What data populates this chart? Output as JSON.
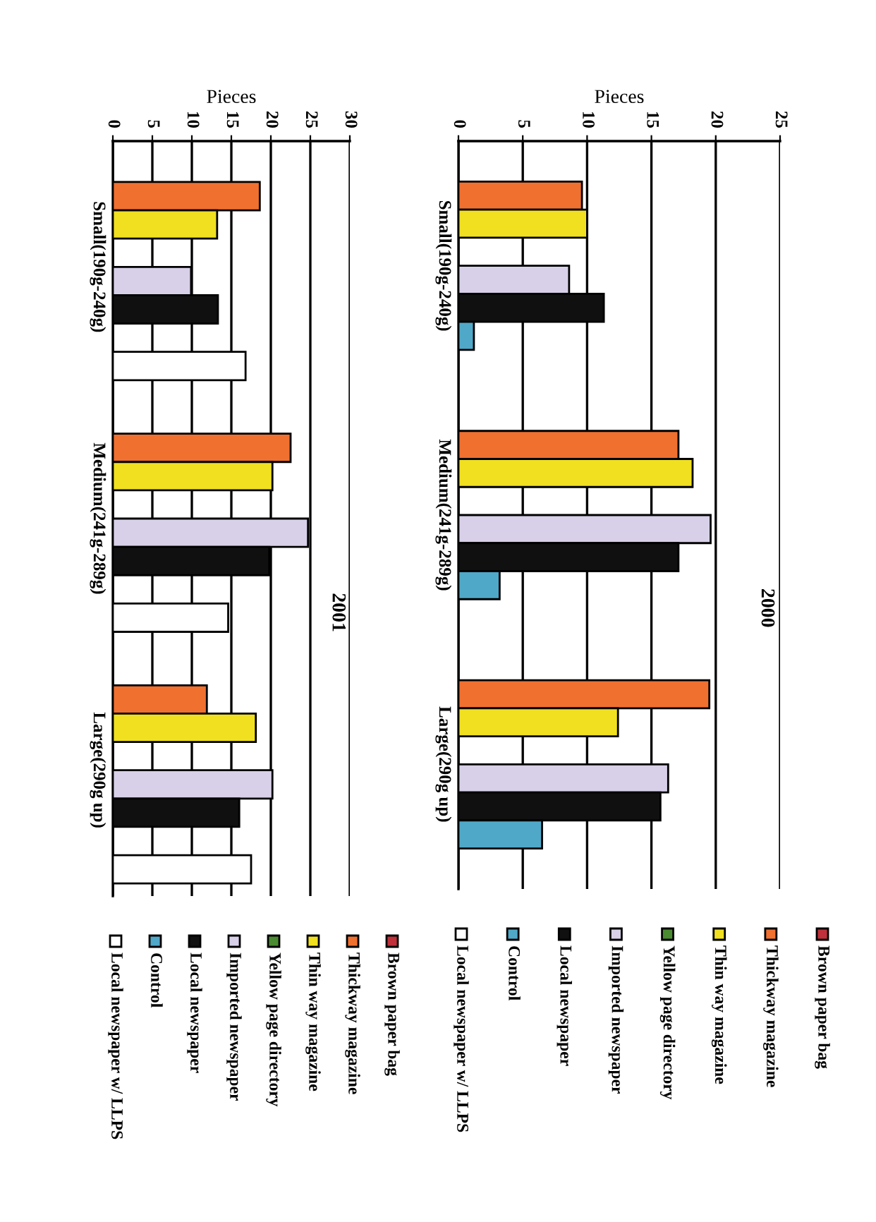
{
  "chart_data": [
    {
      "type": "bar",
      "orientation": "horizontal",
      "title": "2000",
      "xlabel": "Pieces",
      "categories": [
        "Small(190g-240g)",
        "Medium(241g-289g)",
        "Large(290g up)"
      ],
      "xlim": [
        0,
        25
      ],
      "xticks": [
        0,
        5,
        10,
        15,
        20,
        25
      ],
      "grid": "x",
      "legend": "bottom",
      "series": [
        {
          "name": "Brown paper bag",
          "color": "#c0303a",
          "values": [
            null,
            null,
            null
          ]
        },
        {
          "name": "Thickway magazine",
          "color": "#f07030",
          "values": [
            9.6,
            17.1,
            19.5
          ]
        },
        {
          "name": "Thin way magazine",
          "color": "#f0e020",
          "values": [
            10,
            18.2,
            12.4
          ]
        },
        {
          "name": "Yellow page directory",
          "color": "#4a8a30",
          "values": [
            null,
            null,
            null
          ]
        },
        {
          "name": "Imported newspaper",
          "color": "#d8d0e8",
          "values": [
            8.6,
            19.6,
            16.3
          ]
        },
        {
          "name": "Local newspaper",
          "color": "#101010",
          "values": [
            11.3,
            17.1,
            15.7
          ]
        },
        {
          "name": "Control",
          "color": "#50a8c8",
          "values": [
            1.2,
            3.2,
            6.5
          ]
        },
        {
          "name": "Local newspaper w/ LLPS",
          "color": "#ffffff",
          "values": [
            null,
            null,
            null
          ]
        }
      ]
    },
    {
      "type": "bar",
      "orientation": "horizontal",
      "title": "2001",
      "xlabel": "Pieces",
      "categories": [
        "Small(190g-240g)",
        "Medium(241g-289g)",
        "Large(290g up)"
      ],
      "xlim": [
        0,
        30
      ],
      "xticks": [
        0,
        5,
        10,
        15,
        20,
        25,
        30
      ],
      "grid": "x",
      "legend": "bottom",
      "series": [
        {
          "name": "Brown paper bag",
          "color": "#c0303a",
          "values": [
            null,
            null,
            null
          ]
        },
        {
          "name": "Thickway magazine",
          "color": "#f07030",
          "values": [
            18.6,
            22.5,
            11.9
          ]
        },
        {
          "name": "Thin way magazine",
          "color": "#f0e020",
          "values": [
            13.2,
            20.2,
            18.1
          ]
        },
        {
          "name": "Yellow page directory",
          "color": "#4a8a30",
          "values": [
            null,
            null,
            null
          ]
        },
        {
          "name": "Imported newspaper",
          "color": "#d8d0e8",
          "values": [
            9.9,
            24.7,
            20.2
          ]
        },
        {
          "name": "Local newspaper",
          "color": "#101010",
          "values": [
            13.3,
            19.8,
            16.0
          ]
        },
        {
          "name": "Control",
          "color": "#50a8c8",
          "values": [
            null,
            null,
            null
          ]
        },
        {
          "name": "Local newspaper w/ LLPS",
          "color": "#ffffff",
          "values": [
            16.8,
            14.6,
            17.5
          ]
        }
      ]
    }
  ]
}
